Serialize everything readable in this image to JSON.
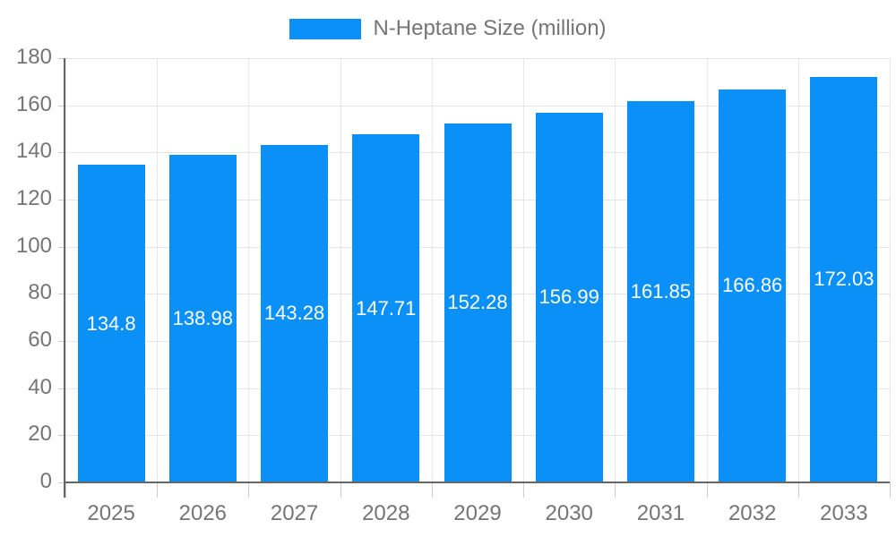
{
  "chart_data": {
    "type": "bar",
    "title": "",
    "legend": {
      "label": "N-Heptane Size (million)",
      "position": "top"
    },
    "categories": [
      "2025",
      "2026",
      "2027",
      "2028",
      "2029",
      "2030",
      "2031",
      "2032",
      "2033"
    ],
    "series": [
      {
        "name": "N-Heptane Size (million)",
        "values": [
          134.8,
          138.98,
          143.28,
          147.71,
          152.28,
          156.99,
          161.85,
          166.86,
          172.03
        ],
        "labels": [
          "134.8",
          "138.98",
          "143.28",
          "147.71",
          "152.28",
          "156.99",
          "161.85",
          "166.86",
          "172.03"
        ]
      }
    ],
    "xlabel": "",
    "ylabel": "",
    "ylim": [
      0,
      180
    ],
    "yticks": [
      0,
      20,
      40,
      60,
      80,
      100,
      120,
      140,
      160,
      180
    ],
    "grid": true,
    "legend_position": "top-center",
    "colors": {
      "bar": "#0a90f7",
      "axis_line": "#666666",
      "gridline": "#e6e6e6",
      "tick": "#cccccc",
      "axis_label": "#757575",
      "legend_text": "#757575",
      "bar_label": "#ffffff",
      "background": "#ffffff"
    }
  }
}
